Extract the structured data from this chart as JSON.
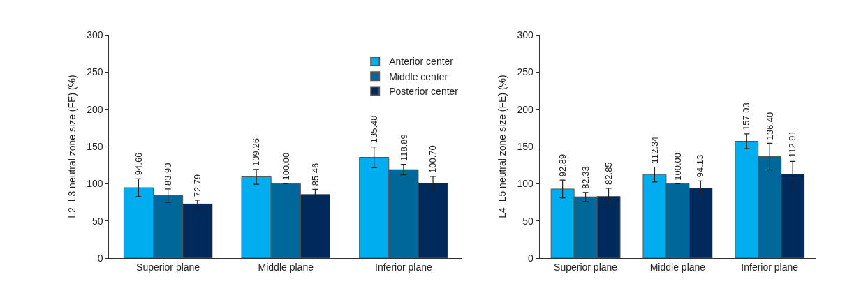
{
  "chart_data": [
    {
      "type": "bar",
      "ylabel": "L2–L3 neutral zone size (FE) (%)",
      "categories": [
        "Superior plane",
        "Middle plane",
        "Inferior plane"
      ],
      "ylim": [
        0,
        300
      ],
      "yticks": [
        0,
        50,
        100,
        150,
        200,
        250,
        300
      ],
      "legend": "top right",
      "series": [
        {
          "name": "Anterior center",
          "color": "#00aeef",
          "values": [
            94.66,
            109.26,
            135.48
          ],
          "value_labels": [
            "94.66",
            "109.26",
            "135.48"
          ],
          "errors": [
            12,
            10,
            14
          ]
        },
        {
          "name": "Middle center",
          "color": "#00679a",
          "values": [
            83.9,
            100.0,
            118.89
          ],
          "value_labels": [
            "83.90",
            "100.00",
            "118.89"
          ],
          "errors": [
            9,
            null,
            7
          ]
        },
        {
          "name": "Posterior center",
          "color": "#002a5c",
          "values": [
            72.79,
            85.46,
            100.7
          ],
          "value_labels": [
            "72.79",
            "85.46",
            "100.70"
          ],
          "errors": [
            5,
            7,
            9
          ]
        }
      ]
    },
    {
      "type": "bar",
      "ylabel": "L4–L5 neutral zone size (FE) (%)",
      "categories": [
        "Superior plane",
        "Middle plane",
        "Inferior plane"
      ],
      "ylim": [
        0,
        300
      ],
      "yticks": [
        0,
        50,
        100,
        150,
        200,
        250,
        300
      ],
      "series": [
        {
          "color": "#00aeef",
          "values": [
            92.89,
            112.34,
            157.03
          ],
          "value_labels": [
            "92.89",
            "112.34",
            "157.03"
          ],
          "errors": [
            12,
            10,
            10
          ]
        },
        {
          "color": "#00679a",
          "values": [
            82.33,
            100.0,
            136.4
          ],
          "value_labels": [
            "82.33",
            "100.00",
            "136.40"
          ],
          "errors": [
            6,
            null,
            18
          ]
        },
        {
          "color": "#002a5c",
          "values": [
            82.85,
            94.13,
            112.91
          ],
          "value_labels": [
            "82.85",
            "94.13",
            "112.91"
          ],
          "errors": [
            11,
            9.5,
            17
          ]
        }
      ]
    }
  ]
}
